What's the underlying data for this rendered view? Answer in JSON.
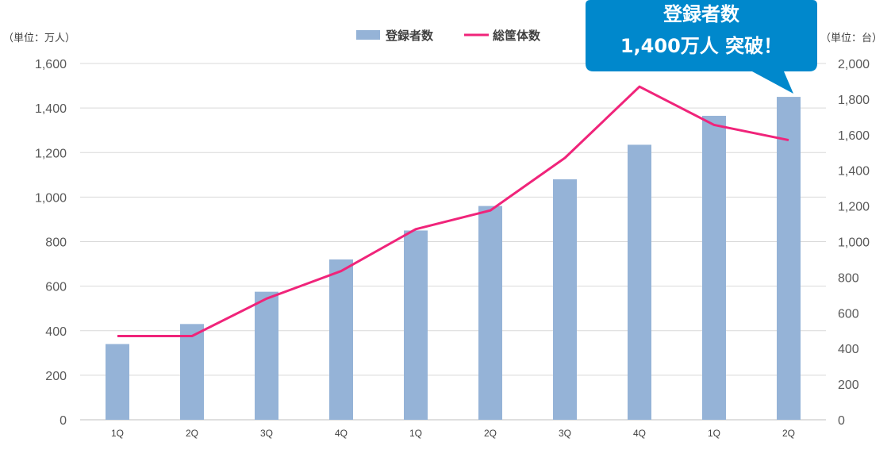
{
  "chart_data": {
    "type": "bar",
    "categories": [
      "1Q",
      "2Q",
      "3Q",
      "4Q",
      "1Q",
      "2Q",
      "3Q",
      "4Q",
      "1Q",
      "2Q"
    ],
    "series": [
      {
        "name": "登録者数",
        "type": "bar",
        "axis": "left",
        "color": "#95B3D7",
        "values": [
          340,
          430,
          575,
          720,
          850,
          960,
          1080,
          1235,
          1365,
          1450
        ]
      },
      {
        "name": "総筐体数",
        "type": "line",
        "axis": "right",
        "color": "#F0247A",
        "values": [
          470,
          470,
          680,
          835,
          1070,
          1175,
          1470,
          1870,
          1655,
          1570
        ]
      }
    ],
    "y_left": {
      "unit_label": "（単位：万人）",
      "ylim": [
        0,
        1600
      ],
      "ticks": [
        "0",
        "200",
        "400",
        "600",
        "800",
        "1,000",
        "1,200",
        "1,400",
        "1,600"
      ]
    },
    "y_right": {
      "unit_label": "（単位：台）",
      "ylim": [
        0,
        2000
      ],
      "ticks": [
        "0",
        "200",
        "400",
        "600",
        "800",
        "1,000",
        "1,200",
        "1,400",
        "1,600",
        "1,800",
        "2,000"
      ]
    },
    "grid": true,
    "legend_position": "top-center",
    "callout": {
      "lines": [
        "登録者数",
        "1,400万人 突破！"
      ],
      "color": "#0088CC",
      "points_to_index": 9
    }
  }
}
